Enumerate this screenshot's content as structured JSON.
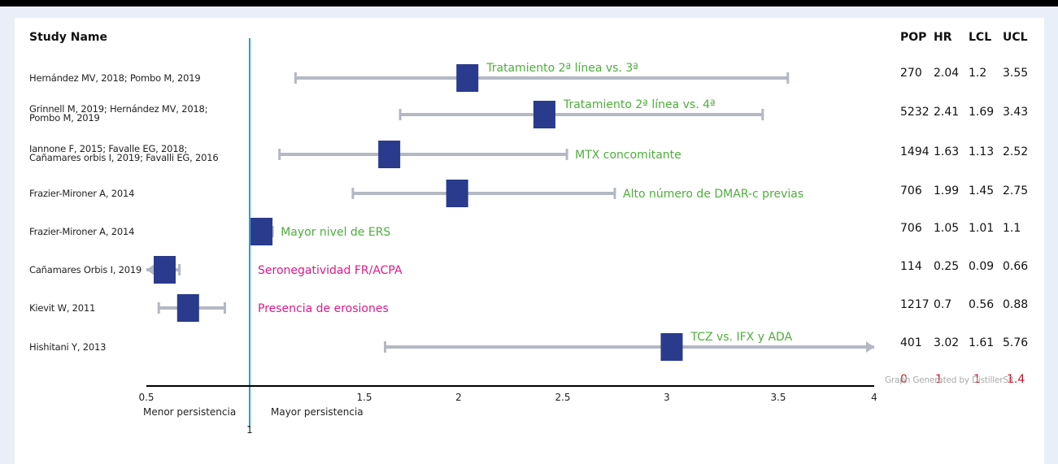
{
  "header": {
    "study_name": "Study Name",
    "pop": "POP",
    "hr": "HR",
    "lcl": "LCL",
    "ucl": "UCL"
  },
  "footer": {
    "totals": [
      "0",
      "1",
      "1",
      "1.4"
    ],
    "generated_by": "Graph Generated by DistillerSR"
  },
  "axis": {
    "left_label": "Menor persistencia",
    "right_label": "Mayor persistencia",
    "ref_label": "1"
  },
  "chart_data": {
    "type": "forest",
    "xlim": [
      0.5,
      4
    ],
    "x_ticks": [
      "0.5",
      "1.5",
      "2",
      "2.5",
      "3",
      "3.5",
      "4"
    ],
    "reference_line": 1,
    "colors": {
      "marker": "#2a3a8c",
      "ci": "#b3b8c4",
      "ref_line": "#2a9fd6",
      "positive_label": "#4caf3a",
      "negative_label": "#e0198a"
    },
    "rows": [
      {
        "study": "Hernández MV, 2018; Pombo M, 2019",
        "label": "Tratamiento 2ª línea vs. 3ª",
        "label_color": "positive",
        "pop": "270",
        "hr": "2.04",
        "lcl": "1.2",
        "ucl": "3.55",
        "hr_v": 2.04,
        "lcl_v": 1.2,
        "ucl_v": 3.55
      },
      {
        "study": "Grinnell M, 2019; Hernández MV, 2018; Pombo M, 2019",
        "label": "Tratamiento 2ª línea vs. 4ª",
        "label_color": "positive",
        "pop": "5232",
        "hr": "2.41",
        "lcl": "1.69",
        "ucl": "3.43",
        "hr_v": 2.41,
        "lcl_v": 1.69,
        "ucl_v": 3.43
      },
      {
        "study": "Iannone F, 2015; Favalle EG, 2018; Cañamares orbis I, 2019; Favalli EG, 2016",
        "label": "MTX concomitante",
        "label_color": "positive",
        "pop": "1494",
        "hr": "1.63",
        "lcl": "1.13",
        "ucl": "2.52",
        "hr_v": 1.63,
        "lcl_v": 1.13,
        "ucl_v": 2.52
      },
      {
        "study": "Frazier-Mironer A, 2014",
        "label": "Alto número de DMAR-c previas",
        "label_color": "positive",
        "pop": "706",
        "hr": "1.99",
        "lcl": "1.45",
        "ucl": "2.75",
        "hr_v": 1.99,
        "lcl_v": 1.45,
        "ucl_v": 2.75
      },
      {
        "study": "Frazier-Mironer A, 2014",
        "label": "Mayor nivel de ERS",
        "label_color": "positive",
        "pop": "706",
        "hr": "1.05",
        "lcl": "1.01",
        "ucl": "1.1",
        "hr_v": 1.05,
        "lcl_v": 1.01,
        "ucl_v": 1.1
      },
      {
        "study": "Cañamares Orbis I, 2019",
        "label": "Seronegatividad FR/ACPA",
        "label_color": "negative",
        "pop": "114",
        "hr": "0.25",
        "lcl": "0.09",
        "ucl": "0.66",
        "hr_v": 0.25,
        "lcl_v": 0.09,
        "ucl_v": 0.66
      },
      {
        "study": "Kievit W, 2011",
        "label": "Presencia de erosiones",
        "label_color": "negative",
        "pop": "1217",
        "hr": "0.7",
        "lcl": "0.56",
        "ucl": "0.88",
        "hr_v": 0.7,
        "lcl_v": 0.56,
        "ucl_v": 0.88
      },
      {
        "study": "Hishitani Y, 2013",
        "label": "TCZ vs. IFX y ADA",
        "label_color": "positive",
        "pop": "401",
        "hr": "3.02",
        "lcl": "1.61",
        "ucl": "5.76",
        "hr_v": 3.02,
        "lcl_v": 1.61,
        "ucl_v": 5.76
      }
    ]
  }
}
